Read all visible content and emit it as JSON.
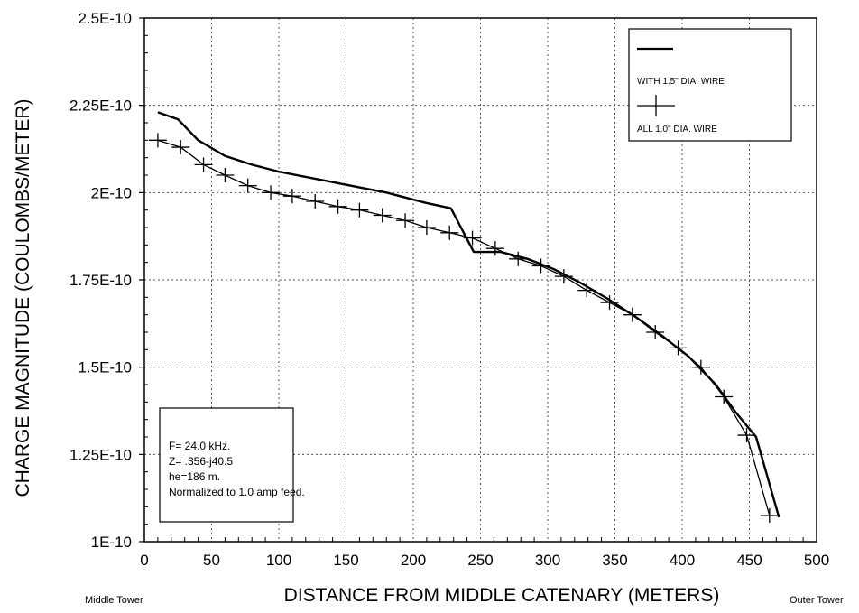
{
  "chart_data": {
    "type": "line",
    "title": "",
    "xlabel": "DISTANCE FROM MIDDLE CATENARY (METERS)",
    "ylabel": "CHARGE MAGNITUDE (COULOMBS/METER)",
    "xlim": [
      0,
      500
    ],
    "ylim": [
      1e-10,
      2.5e-10
    ],
    "x_ticks": [
      0,
      50,
      100,
      150,
      200,
      250,
      300,
      350,
      400,
      450,
      500
    ],
    "x_tick_labels": [
      "0",
      "50",
      "100",
      "150",
      "200",
      "250",
      "300",
      "350",
      "400",
      "450",
      "500"
    ],
    "y_ticks": [
      1e-10,
      1.25e-10,
      1.5e-10,
      1.75e-10,
      2e-10,
      2.25e-10,
      2.5e-10
    ],
    "y_tick_labels": [
      "1E-10",
      "1.25E-10",
      "1.5E-10",
      "1.75E-10",
      "2E-10",
      "2.25E-10",
      "2.5E-10"
    ],
    "x_left_note": "Middle Tower",
    "x_right_note": "Outer Tower",
    "grid": true,
    "legend_position": "top-right",
    "series": [
      {
        "name": "WITH 1.5\" DIA. WIRE",
        "marker": "none",
        "x": [
          10,
          25,
          40,
          60,
          80,
          100,
          120,
          140,
          160,
          180,
          200,
          210,
          228,
          245,
          265,
          285,
          305,
          325,
          345,
          365,
          385,
          405,
          425,
          440,
          455,
          472
        ],
        "y": [
          2.23e-10,
          2.21e-10,
          2.15e-10,
          2.105e-10,
          2.08e-10,
          2.06e-10,
          2.045e-10,
          2.03e-10,
          2.015e-10,
          2e-10,
          1.98e-10,
          1.97e-10,
          1.955e-10,
          1.83e-10,
          1.83e-10,
          1.81e-10,
          1.78e-10,
          1.74e-10,
          1.695e-10,
          1.645e-10,
          1.59e-10,
          1.53e-10,
          1.45e-10,
          1.37e-10,
          1.3e-10,
          1.07e-10
        ]
      },
      {
        "name": "ALL 1.0\" DIA. WIRE",
        "marker": "plus",
        "x": [
          10,
          27,
          44,
          60,
          77,
          94,
          110,
          127,
          144,
          160,
          177,
          194,
          210,
          227,
          244,
          261,
          278,
          295,
          312,
          329,
          346,
          363,
          380,
          397,
          414,
          431,
          448,
          465
        ],
        "y": [
          2.15e-10,
          2.13e-10,
          2.08e-10,
          2.05e-10,
          2.02e-10,
          2e-10,
          1.99e-10,
          1.975e-10,
          1.96e-10,
          1.95e-10,
          1.935e-10,
          1.92e-10,
          1.9e-10,
          1.885e-10,
          1.87e-10,
          1.84e-10,
          1.81e-10,
          1.79e-10,
          1.76e-10,
          1.72e-10,
          1.685e-10,
          1.65e-10,
          1.6e-10,
          1.555e-10,
          1.5e-10,
          1.415e-10,
          1.305e-10,
          1.075e-10
        ]
      }
    ],
    "annotation_lines": [
      "F= 24.0 kHz.",
      "Z= .356-j40.5",
      "he=186 m.",
      "Normalized to 1.0 amp feed."
    ]
  }
}
